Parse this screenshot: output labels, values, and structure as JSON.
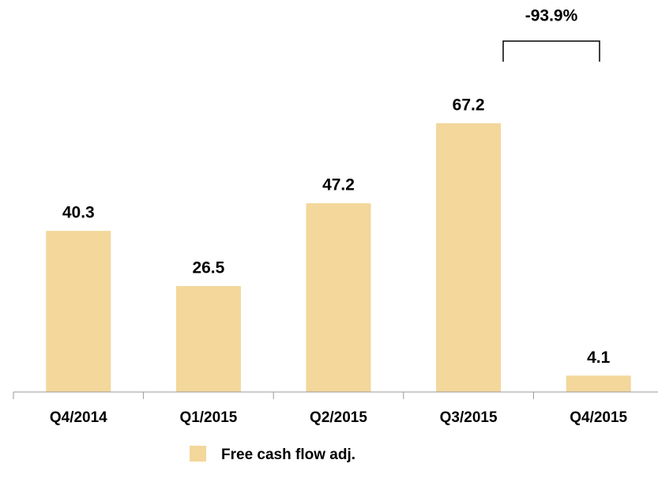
{
  "chart_data": {
    "type": "bar",
    "categories": [
      "Q4/2014",
      "Q1/2015",
      "Q2/2015",
      "Q3/2015",
      "Q4/2015"
    ],
    "series": [
      {
        "name": "Free cash flow adj.",
        "color": "#f3d79b",
        "values": [
          40.3,
          26.5,
          47.2,
          67.2,
          4.1
        ]
      }
    ],
    "annotation": "-93.9%"
  }
}
